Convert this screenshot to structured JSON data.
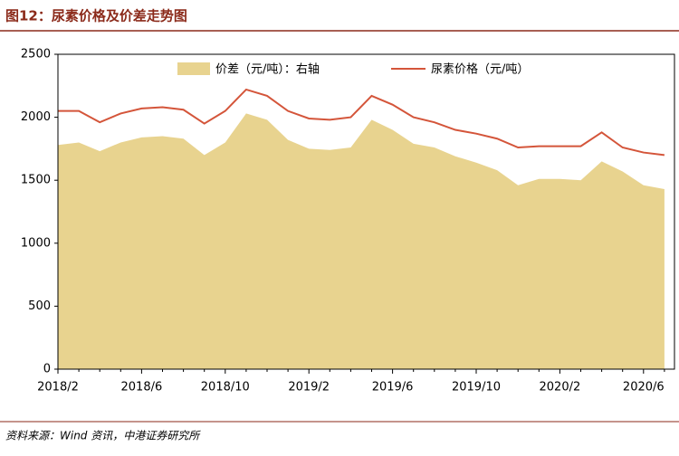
{
  "chart_data": {
    "type": "area-line",
    "title": "图12：尿素价格及价差走势图",
    "source": "资料来源：Wind 资讯，中港证券研究所",
    "categories": [
      "2018/2",
      null,
      null,
      null,
      "2018/6",
      null,
      null,
      null,
      "2018/10",
      null,
      null,
      null,
      "2019/2",
      null,
      null,
      null,
      "2019/6",
      null,
      null,
      null,
      "2019/10",
      null,
      null,
      null,
      "2020/2",
      null,
      null,
      null,
      "2020/6",
      null
    ],
    "series": [
      {
        "name": "价差（元/吨）：右轴",
        "color": "#e8d38f",
        "kind": "area",
        "values": [
          1780,
          1800,
          1730,
          1800,
          1840,
          1850,
          1830,
          1700,
          1800,
          2030,
          1980,
          1820,
          1750,
          1740,
          1760,
          1980,
          1900,
          1790,
          1760,
          1690,
          1640,
          1580,
          1460,
          1510,
          1510,
          1500,
          1650,
          1570,
          1460,
          1430
        ]
      },
      {
        "name": "尿素价格（元/吨）",
        "color": "#d4553a",
        "kind": "line",
        "values": [
          2050,
          2050,
          1960,
          2030,
          2070,
          2080,
          2060,
          1950,
          2050,
          2220,
          2170,
          2050,
          1990,
          1980,
          2000,
          2170,
          2100,
          2000,
          1960,
          1900,
          1870,
          1830,
          1760,
          1770,
          1770,
          1770,
          1880,
          1760,
          1720,
          1700
        ]
      }
    ],
    "ylim": [
      0,
      2500
    ],
    "yticks": [
      0,
      500,
      1000,
      1500,
      2000,
      2500
    ]
  }
}
